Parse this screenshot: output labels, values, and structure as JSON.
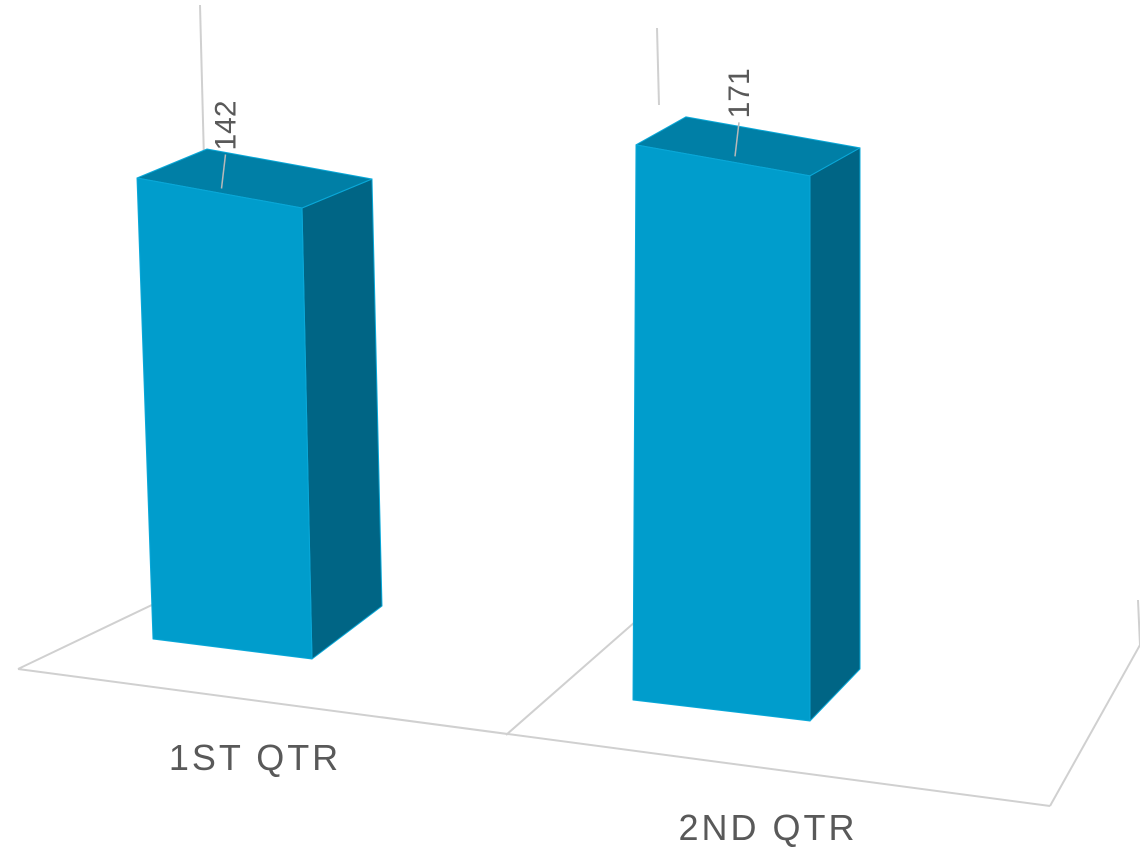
{
  "chart_data": {
    "type": "bar",
    "categories": [
      "1ST QTR",
      "2ND QTR"
    ],
    "series": [
      {
        "values": [
          142,
          171
        ]
      }
    ],
    "data_labels": [
      "142",
      "171"
    ],
    "colors": {
      "front": "#009dcc",
      "side": "#006585",
      "top": "#007fa6",
      "edge": "#0aa8d8",
      "floor": "#d0d0d0",
      "text": "#595959"
    },
    "style": "3d-column",
    "grid": false,
    "legend": "none"
  }
}
